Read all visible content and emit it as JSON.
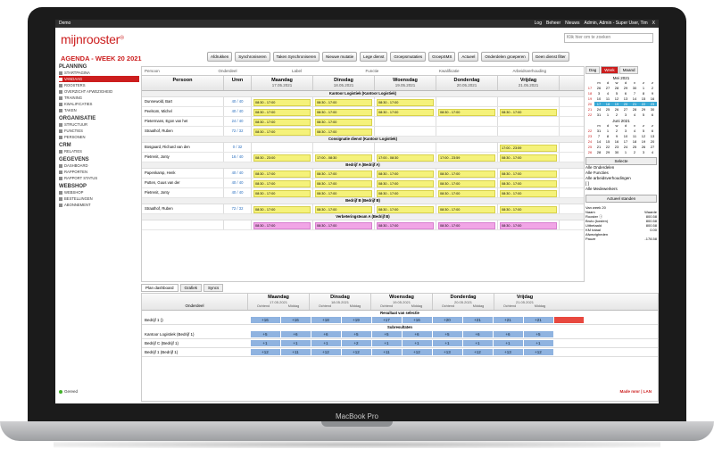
{
  "topbar": {
    "app": "Demo",
    "links": [
      "Log",
      "Beheer",
      "Nieuws",
      "Admin, Admin - Super User, Tim",
      "X"
    ]
  },
  "logo": "mijnrooster",
  "search_placeholder": "Klik hier om te zoeken",
  "page_title": "AGENDA - WEEK 20 2021",
  "toolbar": [
    "Afdrukken",
    "Synchroniseren",
    "Taken Synchroniseren",
    "Nieuwe mutatie",
    "Lege dienst",
    "Groepsmutaties",
    "GroepSMS",
    "Actueel",
    "Onderdelen groeperen",
    "Geen dienst filter"
  ],
  "sidebar": {
    "sections": [
      {
        "title": "PLANNING",
        "items": [
          "STARTPAGINA",
          "VANDAAG",
          "ROOSTERS",
          "OVERZICHT AFWEZIGHEID",
          "TRAINING",
          "KWALIFICATIES",
          "TAKEN"
        ]
      },
      {
        "title": "ORGANISATIE",
        "items": [
          "STRUCTUUR",
          "FUNCTIES",
          "PERSONEN"
        ]
      },
      {
        "title": "CRM",
        "items": [
          "RELATIES"
        ]
      },
      {
        "title": "GEGEVENS",
        "items": [
          "DASHBOARD",
          "RAPPORTEN",
          "RAPPORT STATUS"
        ]
      },
      {
        "title": "WEBSHOP",
        "items": [
          "WEBSHOP",
          "BESTELLINGEN",
          "ABONNEMENT"
        ]
      }
    ],
    "active": "VANDAAG"
  },
  "grid": {
    "filter_cols": [
      "Persoon",
      "Onderdeel",
      "Label",
      "Functie",
      "Kwalificatie",
      "Arbeidsverhouding"
    ],
    "head": {
      "person": "Persoon",
      "hours": "Uren"
    },
    "days": [
      {
        "name": "Maandag",
        "date": "17.05.2021"
      },
      {
        "name": "Dinsdag",
        "date": "18.05.2021"
      },
      {
        "name": "Woensdag",
        "date": "19.05.2021"
      },
      {
        "name": "Donderdag",
        "date": "20.05.2021"
      },
      {
        "name": "Vrijdag",
        "date": "21.05.2021"
      }
    ],
    "groups": [
      {
        "title": "Kantoor Logistiek (Kantoor Logistiek)",
        "rows": [
          {
            "person": "Dunnewold, Bart",
            "hours": "40 / 40",
            "shifts": [
              "08:30 - 17:00",
              "08:30 - 17:00",
              "08:30 - 17:00",
              "",
              ""
            ]
          },
          {
            "person": "Peelsom, Michel",
            "hours": "40 / 40",
            "shifts": [
              "08:30 - 17:00",
              "08:30 - 17:00",
              "08:30 - 17:00",
              "08:30 - 17:00",
              "08:30 - 17:00"
            ]
          },
          {
            "person": "Pietermans, Egon van het",
            "hours": "24 / 40",
            "shifts": [
              "08:30 - 17:00",
              "08:30 - 17:00",
              "",
              "",
              ""
            ]
          },
          {
            "person": "Straathof, Ruben",
            "hours": "72 / 32",
            "shifts": [
              "08:30 - 17:00",
              "08:30 - 17:00",
              "",
              "",
              ""
            ]
          }
        ]
      },
      {
        "title": "Consignatie dienst (Kantoor Logistiek)",
        "rows": [
          {
            "person": "Bosgaard, Richard van den",
            "hours": "0 / 32",
            "shifts": [
              "",
              "",
              "",
              "",
              "17:00 - 23:59"
            ]
          },
          {
            "person": "Pietrenit, Jonty",
            "hours": "16 / 40",
            "shifts": [
              "08:30 - 23:00",
              "17:00 - 08:30",
              "17:00 - 08:30",
              "17:00 - 23:59",
              "08:30 - 17:00"
            ]
          }
        ]
      },
      {
        "title": "Bedrijf A (Bedrijf A)",
        "rows": [
          {
            "person": "Papenkamp, Henk",
            "hours": "40 / 40",
            "shifts": [
              "08:30 - 17:00",
              "08:30 - 17:00",
              "08:30 - 17:00",
              "08:30 - 17:00",
              "08:30 - 17:00"
            ]
          },
          {
            "person": "Putten, Guus van der",
            "hours": "40 / 40",
            "shifts": [
              "08:30 - 17:00",
              "08:30 - 17:00",
              "08:30 - 17:00",
              "08:30 - 17:00",
              "08:30 - 17:00"
            ]
          },
          {
            "person": "Pietrenit, Jonty",
            "hours": "40 / 40",
            "shifts": [
              "08:30 - 17:00",
              "08:30 - 17:00",
              "08:30 - 17:00",
              "08:30 - 17:00",
              "08:30 - 17:00"
            ]
          }
        ]
      },
      {
        "title": "Bedrijf B (Bedrijf B)",
        "rows": [
          {
            "person": "Straathof, Ruben",
            "hours": "72 / 32",
            "shifts": [
              "08:30 - 17:00",
              "08:30 - 17:00",
              "08:30 - 17:00",
              "08:30 - 17:00",
              "08:30 - 17:00"
            ]
          }
        ]
      },
      {
        "title": "Verbeteringsteam A (Bedrijf B)",
        "pink": true,
        "rows": [
          {
            "person": "",
            "hours": "",
            "shifts": [
              "08:30 - 17:00",
              "08:30 - 17:00",
              "08:30 - 17:00",
              "08:30 - 17:00",
              "08:30 - 17:00"
            ]
          }
        ]
      }
    ]
  },
  "dashboard": {
    "tabs": [
      "Plan dashboard",
      "Grafiek",
      "Syncs"
    ],
    "label_head": "Onderdeel",
    "sub": [
      "Ochtend",
      "Middag"
    ],
    "sec1": "Resultaat van selectie",
    "sec2": "Subresultaten",
    "rows": [
      {
        "label": "Bedrijf 1 ()",
        "vals": [
          "+16",
          "+16",
          "+18",
          "+19",
          "+17",
          "+16",
          "+20",
          "+21",
          "+21",
          "+21"
        ],
        "red": true
      },
      {
        "label": "Kantoor Logistiek (Bedrijf 1)",
        "vals": [
          "+5",
          "+6",
          "+6",
          "+5",
          "+5",
          "+6",
          "+5",
          "+6",
          "+6",
          "+5"
        ]
      },
      {
        "label": "Bedrijf C (Bedrijf 1)",
        "vals": [
          "+1",
          "+1",
          "+1",
          "+2",
          "+1",
          "+1",
          "+1",
          "+1",
          "+1",
          "+1"
        ]
      },
      {
        "label": "Bedrijf 1 (Bedrijf 1)",
        "vals": [
          "+12",
          "+11",
          "+12",
          "+12",
          "+11",
          "+12",
          "+13",
          "+12",
          "+13",
          "+12"
        ]
      }
    ]
  },
  "right_panel": {
    "view_tabs": [
      "Dag",
      "Week",
      "Maand"
    ],
    "active_view": "Week",
    "cal1": {
      "title": "Mei 2021",
      "head": [
        "",
        "m",
        "d",
        "w",
        "d",
        "v",
        "z",
        "z"
      ],
      "rows": [
        [
          "17",
          "26",
          "27",
          "28",
          "29",
          "30",
          "1",
          "2"
        ],
        [
          "18",
          "3",
          "4",
          "5",
          "6",
          "7",
          "8",
          "9"
        ],
        [
          "19",
          "10",
          "11",
          "12",
          "13",
          "14",
          "15",
          "16"
        ],
        [
          "20",
          "17",
          "18",
          "19",
          "20",
          "21",
          "22",
          "23"
        ],
        [
          "21",
          "24",
          "25",
          "26",
          "27",
          "28",
          "29",
          "30"
        ],
        [
          "22",
          "31",
          "1",
          "2",
          "3",
          "4",
          "5",
          "6"
        ]
      ]
    },
    "cal2": {
      "title": "Juni 2021",
      "head": [
        "",
        "m",
        "d",
        "w",
        "d",
        "v",
        "z",
        "z"
      ],
      "rows": [
        [
          "22",
          "31",
          "1",
          "2",
          "3",
          "4",
          "5",
          "6"
        ],
        [
          "23",
          "7",
          "8",
          "9",
          "10",
          "11",
          "12",
          "13"
        ],
        [
          "24",
          "14",
          "15",
          "16",
          "17",
          "18",
          "19",
          "20"
        ],
        [
          "25",
          "21",
          "22",
          "23",
          "24",
          "25",
          "26",
          "27"
        ],
        [
          "26",
          "28",
          "29",
          "30",
          "1",
          "2",
          "3",
          "4"
        ]
      ]
    },
    "select_label": "Selecte",
    "filters": [
      "Alle Onderdelen",
      "Alle Functies",
      "Alle arbeidsverhoudingen",
      "[ ]",
      "Alle Medewerkers"
    ],
    "current_btn": "Actueel standen",
    "stats_title": "Van week 20",
    "stats": [
      [
        "Naam",
        "Waarde"
      ],
      [
        "Rooster ⓘ",
        "800.58"
      ],
      [
        "Bruto (kosten)",
        "800.58"
      ],
      [
        "Uitbetaald",
        "800.58"
      ],
      [
        "KM totaal",
        "0.00"
      ],
      [
        "Afwezigheden",
        ""
      ],
      [
        "Pauze",
        "-178.58"
      ]
    ]
  },
  "status": "Gereed",
  "made_by": "Made mmr | LAN",
  "device": "MacBook Pro"
}
